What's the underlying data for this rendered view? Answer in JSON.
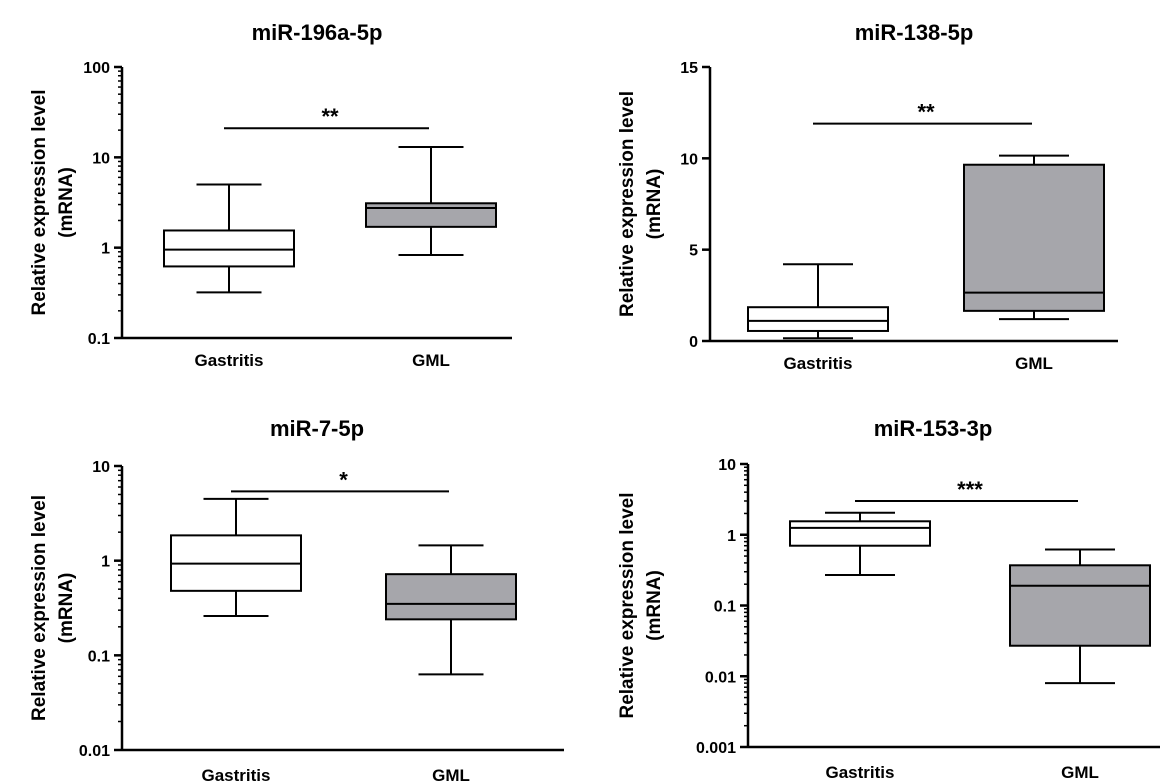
{
  "colors": {
    "gastritis_fill": "#ffffff",
    "gml_fill": "#a6a6ab",
    "stroke": "#000000"
  },
  "chart_data": [
    {
      "type": "box",
      "title": "miR-196a-5p",
      "ylabel": "Relative expression level",
      "ylabel2": "(mRNA)",
      "yscale": "log",
      "ylim": [
        0.1,
        100
      ],
      "yticks": [
        0.1,
        1,
        10,
        100
      ],
      "ytick_labels": [
        "0.1",
        "1",
        "10",
        "100"
      ],
      "categories": [
        "Gastritis",
        "GML"
      ],
      "boxes": [
        {
          "name": "Gastritis",
          "min": 0.32,
          "q1": 0.62,
          "median": 0.95,
          "q3": 1.55,
          "max": 5.0
        },
        {
          "name": "GML",
          "min": 0.83,
          "q1": 1.7,
          "median": 2.75,
          "q3": 3.1,
          "max": 13.0
        }
      ],
      "significance": {
        "label": "**",
        "y": 21
      }
    },
    {
      "type": "box",
      "title": "miR-138-5p",
      "ylabel": "Relative expression level",
      "ylabel2": "(mRNA)",
      "yscale": "linear",
      "ylim": [
        0,
        15
      ],
      "yticks": [
        0,
        5,
        10,
        15
      ],
      "ytick_labels": [
        "0",
        "5",
        "10",
        "15"
      ],
      "categories": [
        "Gastritis",
        "GML"
      ],
      "boxes": [
        {
          "name": "Gastritis",
          "min": 0.15,
          "q1": 0.55,
          "median": 1.1,
          "q3": 1.85,
          "max": 4.2
        },
        {
          "name": "GML",
          "min": 1.2,
          "q1": 1.65,
          "median": 2.65,
          "q3": 9.65,
          "max": 10.15
        }
      ],
      "significance": {
        "label": "**",
        "y": 11.9
      }
    },
    {
      "type": "box",
      "title": "miR-7-5p",
      "ylabel": "Relative expression level",
      "ylabel2": "(mRNA)",
      "yscale": "log",
      "ylim": [
        0.01,
        10
      ],
      "yticks": [
        0.01,
        0.1,
        1,
        10
      ],
      "ytick_labels": [
        "0.01",
        "0.1",
        "1",
        "10"
      ],
      "categories": [
        "Gastritis",
        "GML"
      ],
      "boxes": [
        {
          "name": "Gastritis",
          "min": 0.26,
          "q1": 0.48,
          "median": 0.93,
          "q3": 1.85,
          "max": 4.5
        },
        {
          "name": "GML",
          "min": 0.063,
          "q1": 0.24,
          "median": 0.35,
          "q3": 0.72,
          "max": 1.45
        }
      ],
      "significance": {
        "label": "*",
        "y": 5.4
      }
    },
    {
      "type": "box",
      "title": "miR-153-3p",
      "ylabel": "Relative expression level",
      "ylabel2": "(mRNA)",
      "yscale": "log",
      "ylim": [
        0.001,
        10
      ],
      "yticks": [
        0.001,
        0.01,
        0.1,
        1,
        10
      ],
      "ytick_labels": [
        "0.001",
        "0.01",
        "0.1",
        "1",
        "10"
      ],
      "categories": [
        "Gastritis",
        "GML"
      ],
      "boxes": [
        {
          "name": "Gastritis",
          "min": 0.27,
          "q1": 0.7,
          "median": 1.25,
          "q3": 1.55,
          "max": 2.05
        },
        {
          "name": "GML",
          "min": 0.008,
          "q1": 0.027,
          "median": 0.19,
          "q3": 0.37,
          "max": 0.62
        }
      ],
      "significance": {
        "label": "***",
        "y": 3.0
      }
    }
  ]
}
